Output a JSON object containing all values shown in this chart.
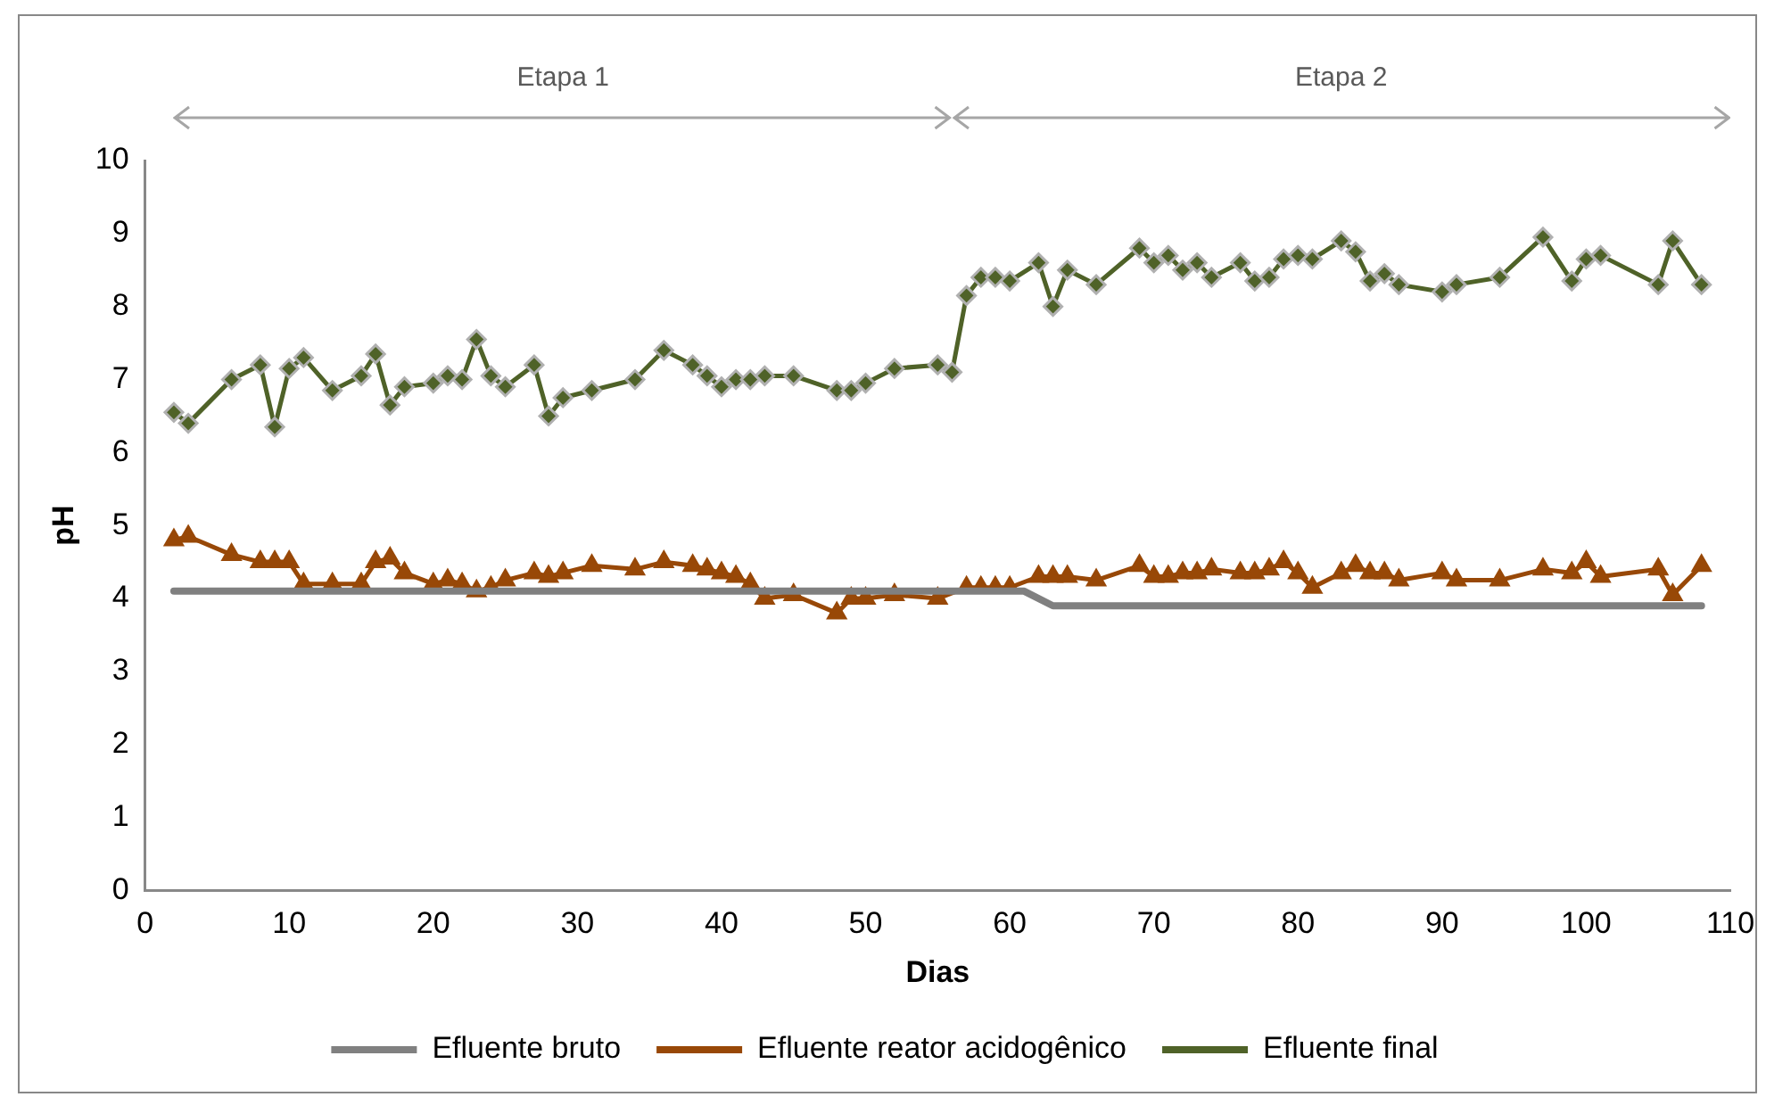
{
  "chart_data": {
    "type": "line",
    "xlabel": "Dias",
    "ylabel": "pH",
    "annotations": [
      "Etapa 1",
      "Etapa 2"
    ],
    "xlim": [
      0,
      110
    ],
    "xticks": [
      0,
      10,
      20,
      30,
      40,
      50,
      60,
      70,
      80,
      90,
      100,
      110
    ],
    "ylim": [
      0,
      10
    ],
    "yticks": [
      0,
      1,
      2,
      3,
      4,
      5,
      6,
      7,
      8,
      9,
      10
    ],
    "grid": false,
    "legend": "bottom",
    "line_style": "solid",
    "series": [
      {
        "name": "Efluente bruto",
        "color": "#808080",
        "marker": "none",
        "x": [
          2,
          61,
          63,
          108
        ],
        "values": [
          4.1,
          4.1,
          3.9,
          3.9
        ]
      },
      {
        "name": "Efluente reator acidogênico",
        "color": "#984807",
        "marker": "triangle",
        "x": [
          2,
          3,
          6,
          8,
          9,
          10,
          11,
          13,
          15,
          16,
          17,
          18,
          20,
          21,
          22,
          23,
          24,
          25,
          27,
          28,
          29,
          31,
          34,
          36,
          38,
          39,
          40,
          41,
          42,
          43,
          45,
          48,
          49,
          50,
          52,
          55,
          57,
          58,
          59,
          60,
          62,
          63,
          64,
          66,
          69,
          70,
          71,
          72,
          73,
          74,
          76,
          77,
          78,
          79,
          80,
          81,
          83,
          84,
          85,
          86,
          87,
          90,
          91,
          94,
          97,
          99,
          100,
          101,
          105,
          106,
          108
        ],
        "values": [
          4.8,
          4.85,
          4.6,
          4.5,
          4.5,
          4.5,
          4.2,
          4.2,
          4.2,
          4.5,
          4.55,
          4.35,
          4.2,
          4.25,
          4.2,
          4.1,
          4.15,
          4.25,
          4.35,
          4.3,
          4.35,
          4.45,
          4.4,
          4.5,
          4.45,
          4.4,
          4.35,
          4.3,
          4.2,
          4.0,
          4.05,
          3.8,
          4.0,
          4.0,
          4.05,
          4.0,
          4.15,
          4.15,
          4.15,
          4.15,
          4.3,
          4.3,
          4.3,
          4.25,
          4.45,
          4.3,
          4.3,
          4.35,
          4.35,
          4.4,
          4.35,
          4.35,
          4.4,
          4.5,
          4.35,
          4.15,
          4.35,
          4.45,
          4.35,
          4.35,
          4.25,
          4.35,
          4.25,
          4.25,
          4.4,
          4.35,
          4.5,
          4.3,
          4.4,
          4.05,
          4.45
        ]
      },
      {
        "name": "Efluente final",
        "color": "#4f6228",
        "marker": "diamond",
        "x": [
          2,
          3,
          6,
          8,
          9,
          10,
          11,
          13,
          15,
          16,
          17,
          18,
          20,
          21,
          22,
          23,
          24,
          25,
          27,
          28,
          29,
          31,
          34,
          36,
          38,
          39,
          40,
          41,
          42,
          43,
          45,
          48,
          49,
          50,
          52,
          55,
          56,
          57,
          58,
          59,
          60,
          62,
          63,
          64,
          66,
          69,
          70,
          71,
          72,
          73,
          74,
          76,
          77,
          78,
          79,
          80,
          81,
          83,
          84,
          85,
          86,
          87,
          90,
          91,
          94,
          97,
          99,
          100,
          101,
          105,
          106,
          108
        ],
        "values": [
          6.55,
          6.4,
          7.0,
          7.2,
          6.35,
          7.15,
          7.3,
          6.85,
          7.05,
          7.35,
          6.65,
          6.9,
          6.95,
          7.05,
          7.0,
          7.55,
          7.05,
          6.9,
          7.2,
          6.5,
          6.75,
          6.85,
          7.0,
          7.4,
          7.2,
          7.05,
          6.9,
          7.0,
          7.0,
          7.05,
          7.05,
          6.85,
          6.85,
          6.95,
          7.15,
          7.2,
          7.1,
          8.15,
          8.4,
          8.4,
          8.35,
          8.6,
          8.0,
          8.5,
          8.3,
          8.8,
          8.6,
          8.7,
          8.5,
          8.6,
          8.4,
          8.6,
          8.35,
          8.4,
          8.65,
          8.7,
          8.65,
          8.9,
          8.75,
          8.35,
          8.45,
          8.3,
          8.2,
          8.3,
          8.4,
          8.95,
          8.35,
          8.65,
          8.7,
          8.3,
          8.9,
          8.3
        ]
      }
    ]
  }
}
